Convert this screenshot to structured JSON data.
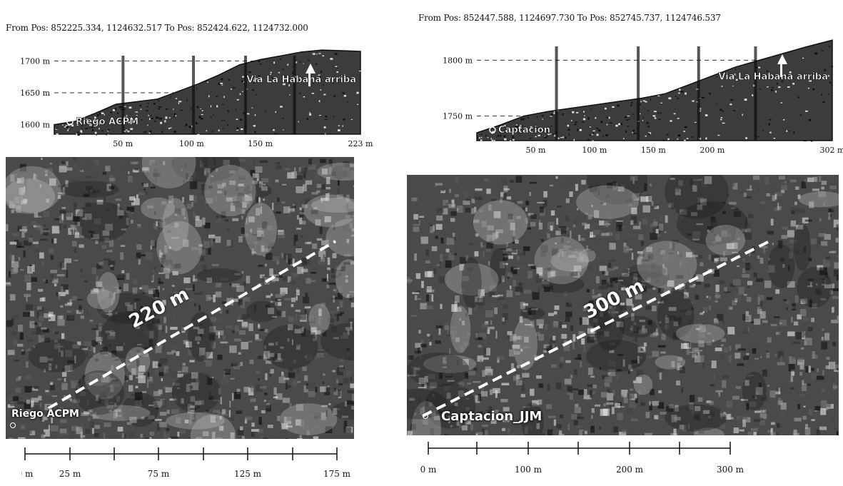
{
  "left": {
    "header": "From Pos: 852225.334, 1124632.517  To Pos: 852424.622, 1124732.000",
    "chart_data": {
      "type": "area",
      "x": [
        0,
        15,
        30,
        45,
        60,
        75,
        90,
        105,
        120,
        135,
        150,
        165,
        180,
        195,
        210,
        223
      ],
      "y": [
        1600,
        1605,
        1618,
        1632,
        1636,
        1640,
        1652,
        1664,
        1678,
        1694,
        1702,
        1708,
        1714,
        1717,
        1716,
        1715
      ],
      "xlim": [
        0,
        223
      ],
      "ylim": [
        1585,
        1725
      ],
      "y_ticks": [
        "1600 m",
        "1650 m",
        "1700 m"
      ],
      "y_tick_values": [
        1600,
        1650,
        1700
      ],
      "x_ticks": [
        "50 m",
        "100 m",
        "150 m",
        "223 m"
      ],
      "x_tick_values": [
        50,
        100,
        150,
        223
      ],
      "start_label": "Riego ACPM",
      "end_label": "Via La Habana arriba"
    },
    "map": {
      "start_label": "Riego ACPM",
      "distance_label": "220 m"
    },
    "scale": {
      "labels": [
        "0 m",
        "25 m",
        "75 m",
        "125 m",
        "175 m"
      ]
    }
  },
  "right": {
    "header": "From Pos: 852447.588, 1124697.730  To Pos: 852745.737, 1124746.537",
    "chart_data": {
      "type": "area",
      "x": [
        0,
        20,
        40,
        60,
        80,
        100,
        120,
        140,
        160,
        180,
        200,
        220,
        240,
        260,
        280,
        302
      ],
      "y": [
        1735,
        1742,
        1750,
        1754,
        1757,
        1760,
        1763,
        1766,
        1770,
        1778,
        1786,
        1794,
        1800,
        1806,
        1812,
        1818
      ],
      "xlim": [
        0,
        302
      ],
      "ylim": [
        1728,
        1822
      ],
      "y_ticks": [
        "1750 m",
        "1800 m"
      ],
      "y_tick_values": [
        1750,
        1800
      ],
      "x_ticks": [
        "50 m",
        "100 m",
        "150 m",
        "200 m",
        "302 m"
      ],
      "x_tick_values": [
        50,
        100,
        150,
        200,
        302
      ],
      "start_label": "Captacion",
      "end_label": "Via La Habana arriba"
    },
    "map": {
      "start_label": "Captacion_JJM",
      "distance_label": "300 m"
    },
    "scale": {
      "labels": [
        "0 m",
        "100 m",
        "200 m",
        "300 m"
      ]
    }
  }
}
